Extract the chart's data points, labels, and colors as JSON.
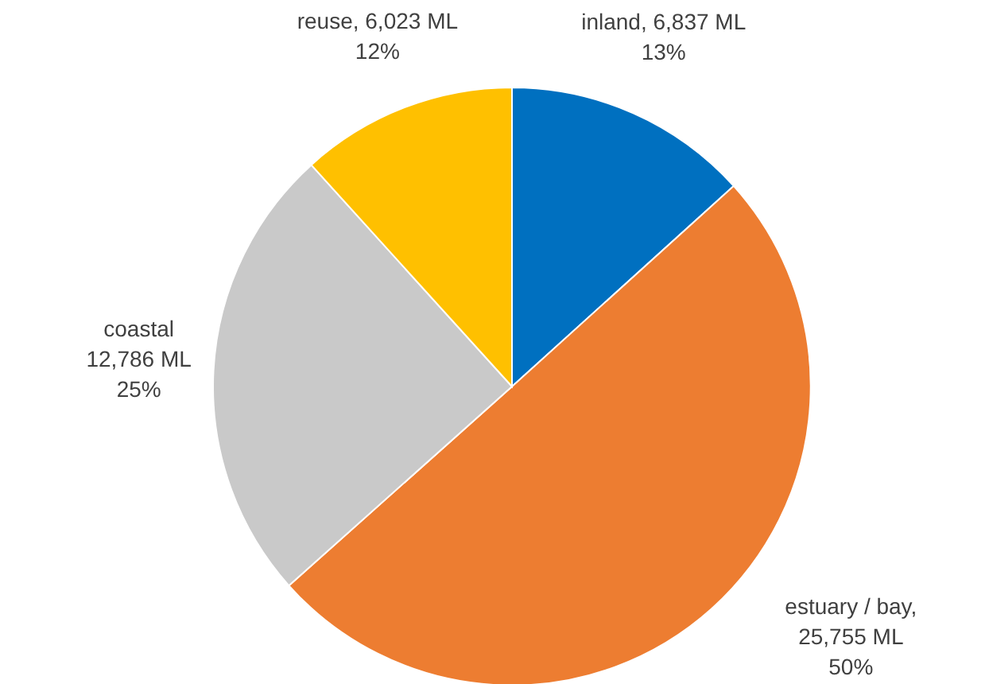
{
  "chart_data": {
    "type": "pie",
    "categories": [
      "inland",
      "estuary / bay",
      "coastal",
      "reuse"
    ],
    "values": [
      6837,
      25755,
      12786,
      6023
    ],
    "colors": [
      "#0070c0",
      "#ed7d31",
      "#c9c9c9",
      "#ffc000"
    ],
    "value_labels": [
      ",  6,837 ML\n13%",
      ",\n25,755 ML\n50%",
      "\n12,786  ML\n25%",
      ",  6,023 ML\n12%"
    ]
  }
}
